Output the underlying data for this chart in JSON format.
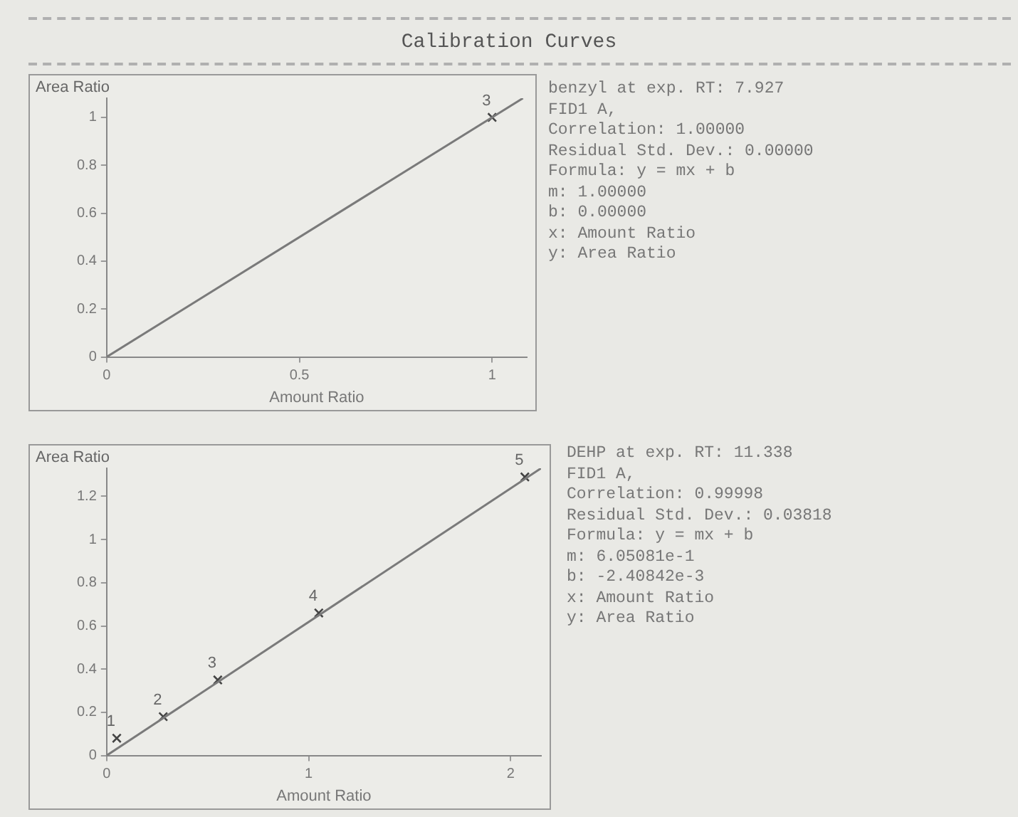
{
  "chart_data": [
    {
      "type": "scatter",
      "title": "Calibration Curves",
      "xlabel": "Amount Ratio",
      "ylabel": "Area Ratio",
      "xlim": [
        0,
        1.09
      ],
      "ylim": [
        0,
        1.08
      ],
      "xticks": [
        0,
        0.5,
        1
      ],
      "yticks": [
        0,
        0.2,
        0.4,
        0.6,
        0.8,
        1
      ],
      "grid": false,
      "legend": false,
      "annotations": [
        {
          "text": "3",
          "x": 1,
          "y": 1
        }
      ],
      "series": [
        {
          "type": "line",
          "x": [
            0,
            1.08
          ],
          "values": [
            0,
            1.08
          ],
          "color": "#7a7a7a",
          "marker": "none"
        },
        {
          "type": "scatter",
          "x": [
            1
          ],
          "values": [
            1
          ],
          "color": "#444444",
          "marker": "cross"
        }
      ]
    },
    {
      "type": "other",
      "annotations": [
        "benzyl at exp. RT: 7.927",
        "FID1 A,",
        "Correlation: 1.00000",
        "Residual Std. Dev.: 0.00000",
        "Formula: y = mx + b",
        "m: 1.00000",
        "b: 0.00000",
        "x: Amount Ratio",
        "y: Area Ratio"
      ]
    },
    {
      "type": "scatter",
      "xlabel": "Amount Ratio",
      "ylabel": "Area Ratio",
      "xlim": [
        0,
        2.15
      ],
      "ylim": [
        0,
        1.33
      ],
      "xticks": [
        0,
        1,
        2
      ],
      "yticks": [
        0,
        0.2,
        0.4,
        0.6,
        0.8,
        1,
        1.2
      ],
      "grid": false,
      "legend": false,
      "series": [
        {
          "type": "line",
          "x": [
            0,
            2.15
          ],
          "values": [
            0,
            1.33
          ],
          "color": "#7a7a7a",
          "marker": "none"
        },
        {
          "type": "scatter",
          "x": [
            0.05,
            0.28,
            0.55,
            1.05,
            2.07
          ],
          "values": [
            0.08,
            0.18,
            0.35,
            0.66,
            1.29
          ],
          "color": "#444444",
          "marker": "cross"
        }
      ],
      "annotations": [
        {
          "text": "1",
          "x": 0.05,
          "y": 0.08
        },
        {
          "text": "2",
          "x": 0.28,
          "y": 0.18
        },
        {
          "text": "3",
          "x": 0.55,
          "y": 0.35
        },
        {
          "text": "4",
          "x": 1.05,
          "y": 0.66
        },
        {
          "text": "5",
          "x": 2.07,
          "y": 1.29
        }
      ]
    },
    {
      "type": "other",
      "annotations": [
        "DEHP at exp. RT: 11.338",
        "FID1 A,",
        "Correlation: 0.99998",
        "Residual Std. Dev.: 0.03818",
        "Formula: y = mx + b",
        "m: 6.05081e-1",
        "b: -2.40842e-3",
        "x: Amount Ratio",
        "y: Area Ratio"
      ]
    }
  ]
}
